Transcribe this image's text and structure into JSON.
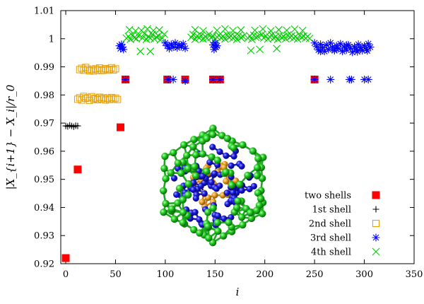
{
  "chart_data": {
    "type": "scatter",
    "xlabel": "i",
    "ylabel": "|X_{i+1} − X_i|/r_0",
    "xlim": [
      -5,
      350
    ],
    "ylim": [
      0.92,
      1.01
    ],
    "xticks": [
      "0",
      "50",
      "100",
      "150",
      "200",
      "250",
      "300",
      "350"
    ],
    "yticks": [
      "0.92",
      "0.93",
      "0.94",
      "0.95",
      "0.96",
      "0.97",
      "0.98",
      "0.99",
      "1",
      "1.01"
    ],
    "legend_position": "bottom-right",
    "inset": "cluster rendering (orange core, blue 3rd shell, green 4th shell)",
    "series": [
      {
        "name": "two shells",
        "marker": "filled-square",
        "color": "#ff0000",
        "points": [
          [
            0,
            0.922
          ],
          [
            12,
            0.9535
          ],
          [
            55,
            0.9685
          ],
          [
            60,
            0.9855
          ],
          [
            102,
            0.9855
          ],
          [
            120,
            0.9855
          ],
          [
            148,
            0.9855
          ],
          [
            155,
            0.9855
          ],
          [
            250,
            0.9855
          ]
        ]
      },
      {
        "name": "1st shell",
        "marker": "plus",
        "color": "#000000",
        "points": [
          [
            0,
            0.969
          ],
          [
            2,
            0.9688
          ],
          [
            4,
            0.9692
          ],
          [
            6,
            0.969
          ],
          [
            8,
            0.9687
          ],
          [
            10,
            0.9691
          ],
          [
            12,
            0.969
          ]
        ]
      },
      {
        "name": "2nd shell",
        "marker": "open-square",
        "color": "#e69f00",
        "points": [
          [
            12,
            0.9785
          ],
          [
            14,
            0.979
          ],
          [
            16,
            0.9782
          ],
          [
            18,
            0.9795
          ],
          [
            20,
            0.9788
          ],
          [
            22,
            0.979
          ],
          [
            24,
            0.9781
          ],
          [
            26,
            0.9794
          ],
          [
            28,
            0.9786
          ],
          [
            30,
            0.9789
          ],
          [
            32,
            0.9783
          ],
          [
            34,
            0.9792
          ],
          [
            36,
            0.9786
          ],
          [
            38,
            0.979
          ],
          [
            40,
            0.9782
          ],
          [
            42,
            0.9788
          ],
          [
            44,
            0.9784
          ],
          [
            46,
            0.9791
          ],
          [
            48,
            0.9785
          ],
          [
            50,
            0.9789
          ],
          [
            52,
            0.9784
          ],
          [
            14,
            0.989
          ],
          [
            16,
            0.9895
          ],
          [
            18,
            0.9888
          ],
          [
            20,
            0.9898
          ],
          [
            22,
            0.9892
          ],
          [
            24,
            0.9886
          ],
          [
            26,
            0.989
          ],
          [
            28,
            0.9885
          ],
          [
            30,
            0.9893
          ],
          [
            32,
            0.9889
          ],
          [
            34,
            0.9896
          ],
          [
            36,
            0.9887
          ],
          [
            38,
            0.989
          ],
          [
            40,
            0.9894
          ],
          [
            42,
            0.9888
          ],
          [
            44,
            0.9891
          ],
          [
            46,
            0.9897
          ],
          [
            48,
            0.9889
          ],
          [
            50,
            0.9893
          ]
        ]
      },
      {
        "name": "3rd shell",
        "marker": "star",
        "color": "#0000ff",
        "points": [
          [
            54,
            0.9975
          ],
          [
            55,
            0.9965
          ],
          [
            56,
            0.998
          ],
          [
            57,
            0.997
          ],
          [
            58,
            0.9962
          ],
          [
            60,
            0.9855
          ],
          [
            100,
            0.9985
          ],
          [
            102,
            0.9975
          ],
          [
            104,
            0.9965
          ],
          [
            106,
            0.998
          ],
          [
            108,
            0.997
          ],
          [
            110,
            0.9985
          ],
          [
            112,
            0.9968
          ],
          [
            114,
            0.9978
          ],
          [
            116,
            0.9972
          ],
          [
            118,
            0.9982
          ],
          [
            120,
            0.9966
          ],
          [
            103,
            0.9855
          ],
          [
            108,
            0.9855
          ],
          [
            120,
            0.985
          ],
          [
            148,
            0.9978
          ],
          [
            149,
            0.9962
          ],
          [
            150,
            0.9985
          ],
          [
            151,
            0.997
          ],
          [
            152,
            0.9975
          ],
          [
            148,
            0.9855
          ],
          [
            155,
            0.9855
          ],
          [
            250,
            0.9855
          ],
          [
            266,
            0.9855
          ],
          [
            285,
            0.9855
          ],
          [
            287,
            0.9855
          ],
          [
            300,
            0.9855
          ],
          [
            304,
            0.9855
          ],
          [
            250,
            0.9985
          ],
          [
            252,
            0.9972
          ],
          [
            254,
            0.996
          ],
          [
            256,
            0.998
          ],
          [
            258,
            0.9968
          ],
          [
            260,
            0.9955
          ],
          [
            262,
            0.9978
          ],
          [
            264,
            0.9962
          ],
          [
            266,
            0.9985
          ],
          [
            268,
            0.997
          ],
          [
            270,
            0.9958
          ],
          [
            272,
            0.9975
          ],
          [
            274,
            0.9965
          ],
          [
            276,
            0.9982
          ],
          [
            278,
            0.9955
          ],
          [
            280,
            0.997
          ],
          [
            282,
            0.996
          ],
          [
            284,
            0.9978
          ],
          [
            286,
            0.9966
          ],
          [
            288,
            0.9952
          ],
          [
            290,
            0.9972
          ],
          [
            292,
            0.9962
          ],
          [
            294,
            0.998
          ],
          [
            296,
            0.9968
          ],
          [
            298,
            0.9958
          ],
          [
            300,
            0.9975
          ],
          [
            302,
            0.9963
          ],
          [
            304,
            0.9982
          ],
          [
            306,
            0.997
          ],
          [
            256,
            0.9955
          ],
          [
            270,
            0.9963
          ],
          [
            282,
            0.9977
          ],
          [
            293,
            0.9954
          ],
          [
            303,
            0.9957
          ]
        ]
      },
      {
        "name": "4th shell",
        "marker": "cross",
        "color": "#00cc00",
        "points": [
          [
            61,
            1.0002
          ],
          [
            63,
            1.0008
          ],
          [
            65,
            0.9998
          ],
          [
            67,
            1.0012
          ],
          [
            69,
            1.0004
          ],
          [
            71,
            1.0
          ],
          [
            73,
            1.001
          ],
          [
            75,
            0.9955
          ],
          [
            77,
            1.0003
          ],
          [
            79,
            1.0018
          ],
          [
            81,
            0.9998
          ],
          [
            83,
            1.0008
          ],
          [
            85,
            1.0002
          ],
          [
            87,
            1.0015
          ],
          [
            89,
            0.9999
          ],
          [
            91,
            1.0006
          ],
          [
            93,
            1.001
          ],
          [
            95,
            0.9996
          ],
          [
            97,
            1.0002
          ],
          [
            99,
            1.0016
          ],
          [
            64,
            1.0032
          ],
          [
            70,
            1.0028
          ],
          [
            76,
            1.003
          ],
          [
            82,
            1.0035
          ],
          [
            88,
            1.0029
          ],
          [
            94,
            1.0031
          ],
          [
            85,
            0.9955
          ],
          [
            126,
            1.0005
          ],
          [
            128,
            1.0015
          ],
          [
            130,
            0.9998
          ],
          [
            132,
            1.001
          ],
          [
            134,
            1.0003
          ],
          [
            136,
            1.0012
          ],
          [
            138,
            0.9999
          ],
          [
            140,
            1.0008
          ],
          [
            142,
            1.0002
          ],
          [
            144,
            1.0016
          ],
          [
            146,
            1.0004
          ],
          [
            148,
            1.001
          ],
          [
            150,
            0.9998
          ],
          [
            152,
            1.0006
          ],
          [
            154,
            1.0012
          ],
          [
            156,
            1.0003
          ],
          [
            158,
            1.0009
          ],
          [
            160,
            0.9999
          ],
          [
            162,
            1.0014
          ],
          [
            164,
            1.0005
          ],
          [
            166,
            1.001
          ],
          [
            168,
            1.0002
          ],
          [
            170,
            1.0008
          ],
          [
            172,
            0.9998
          ],
          [
            174,
            1.0012
          ],
          [
            176,
            1.0004
          ],
          [
            178,
            1.0008
          ],
          [
            130,
            1.0032
          ],
          [
            138,
            1.0028
          ],
          [
            152,
            1.003
          ],
          [
            160,
            1.0035
          ],
          [
            168,
            1.0029
          ],
          [
            176,
            1.0031
          ],
          [
            183,
            1.0002
          ],
          [
            185,
            1.001
          ],
          [
            187,
            0.9998
          ],
          [
            189,
            1.0012
          ],
          [
            191,
            1.0005
          ],
          [
            193,
            1.0008
          ],
          [
            195,
            0.9962
          ],
          [
            197,
            1.0015
          ],
          [
            199,
            1.0003
          ],
          [
            201,
            1.001
          ],
          [
            203,
            0.9999
          ],
          [
            205,
            1.0006
          ],
          [
            207,
            1.0014
          ],
          [
            209,
            1.0002
          ],
          [
            211,
            1.0008
          ],
          [
            213,
            0.9998
          ],
          [
            215,
            1.0011
          ],
          [
            217,
            1.0004
          ],
          [
            219,
            1.0008
          ],
          [
            221,
            1.0
          ],
          [
            223,
            1.0013
          ],
          [
            225,
            1.0005
          ],
          [
            227,
            1.001
          ],
          [
            229,
            1.0002
          ],
          [
            231,
            1.0008
          ],
          [
            233,
            0.9999
          ],
          [
            235,
            1.0012
          ],
          [
            237,
            1.0005
          ],
          [
            239,
            1.0009
          ],
          [
            241,
            1.0002
          ],
          [
            243,
            1.0008
          ],
          [
            245,
            1.0001
          ],
          [
            190,
            1.003
          ],
          [
            198,
            1.0035
          ],
          [
            206,
            1.0028
          ],
          [
            214,
            1.0032
          ],
          [
            222,
            1.003
          ],
          [
            230,
            1.0034
          ],
          [
            238,
            1.0029
          ],
          [
            186,
            0.9958
          ],
          [
            212,
            0.9965
          ]
        ]
      }
    ]
  }
}
